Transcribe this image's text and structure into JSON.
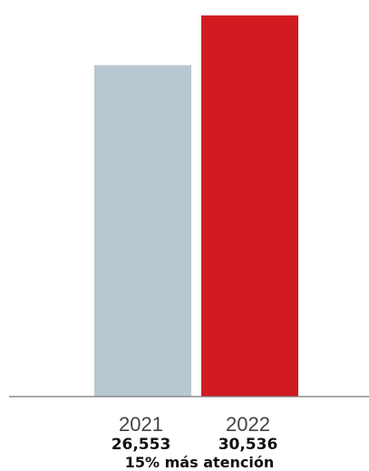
{
  "chart_data": {
    "type": "bar",
    "categories": [
      "2021",
      "2022"
    ],
    "values": [
      26553,
      30536
    ],
    "value_labels": [
      "26,553",
      "30,536"
    ],
    "colors": [
      "#b9c8d0",
      "#d11b21"
    ],
    "ylim": [
      0,
      30536
    ],
    "grid": false,
    "footer_text": "15% más atención"
  }
}
